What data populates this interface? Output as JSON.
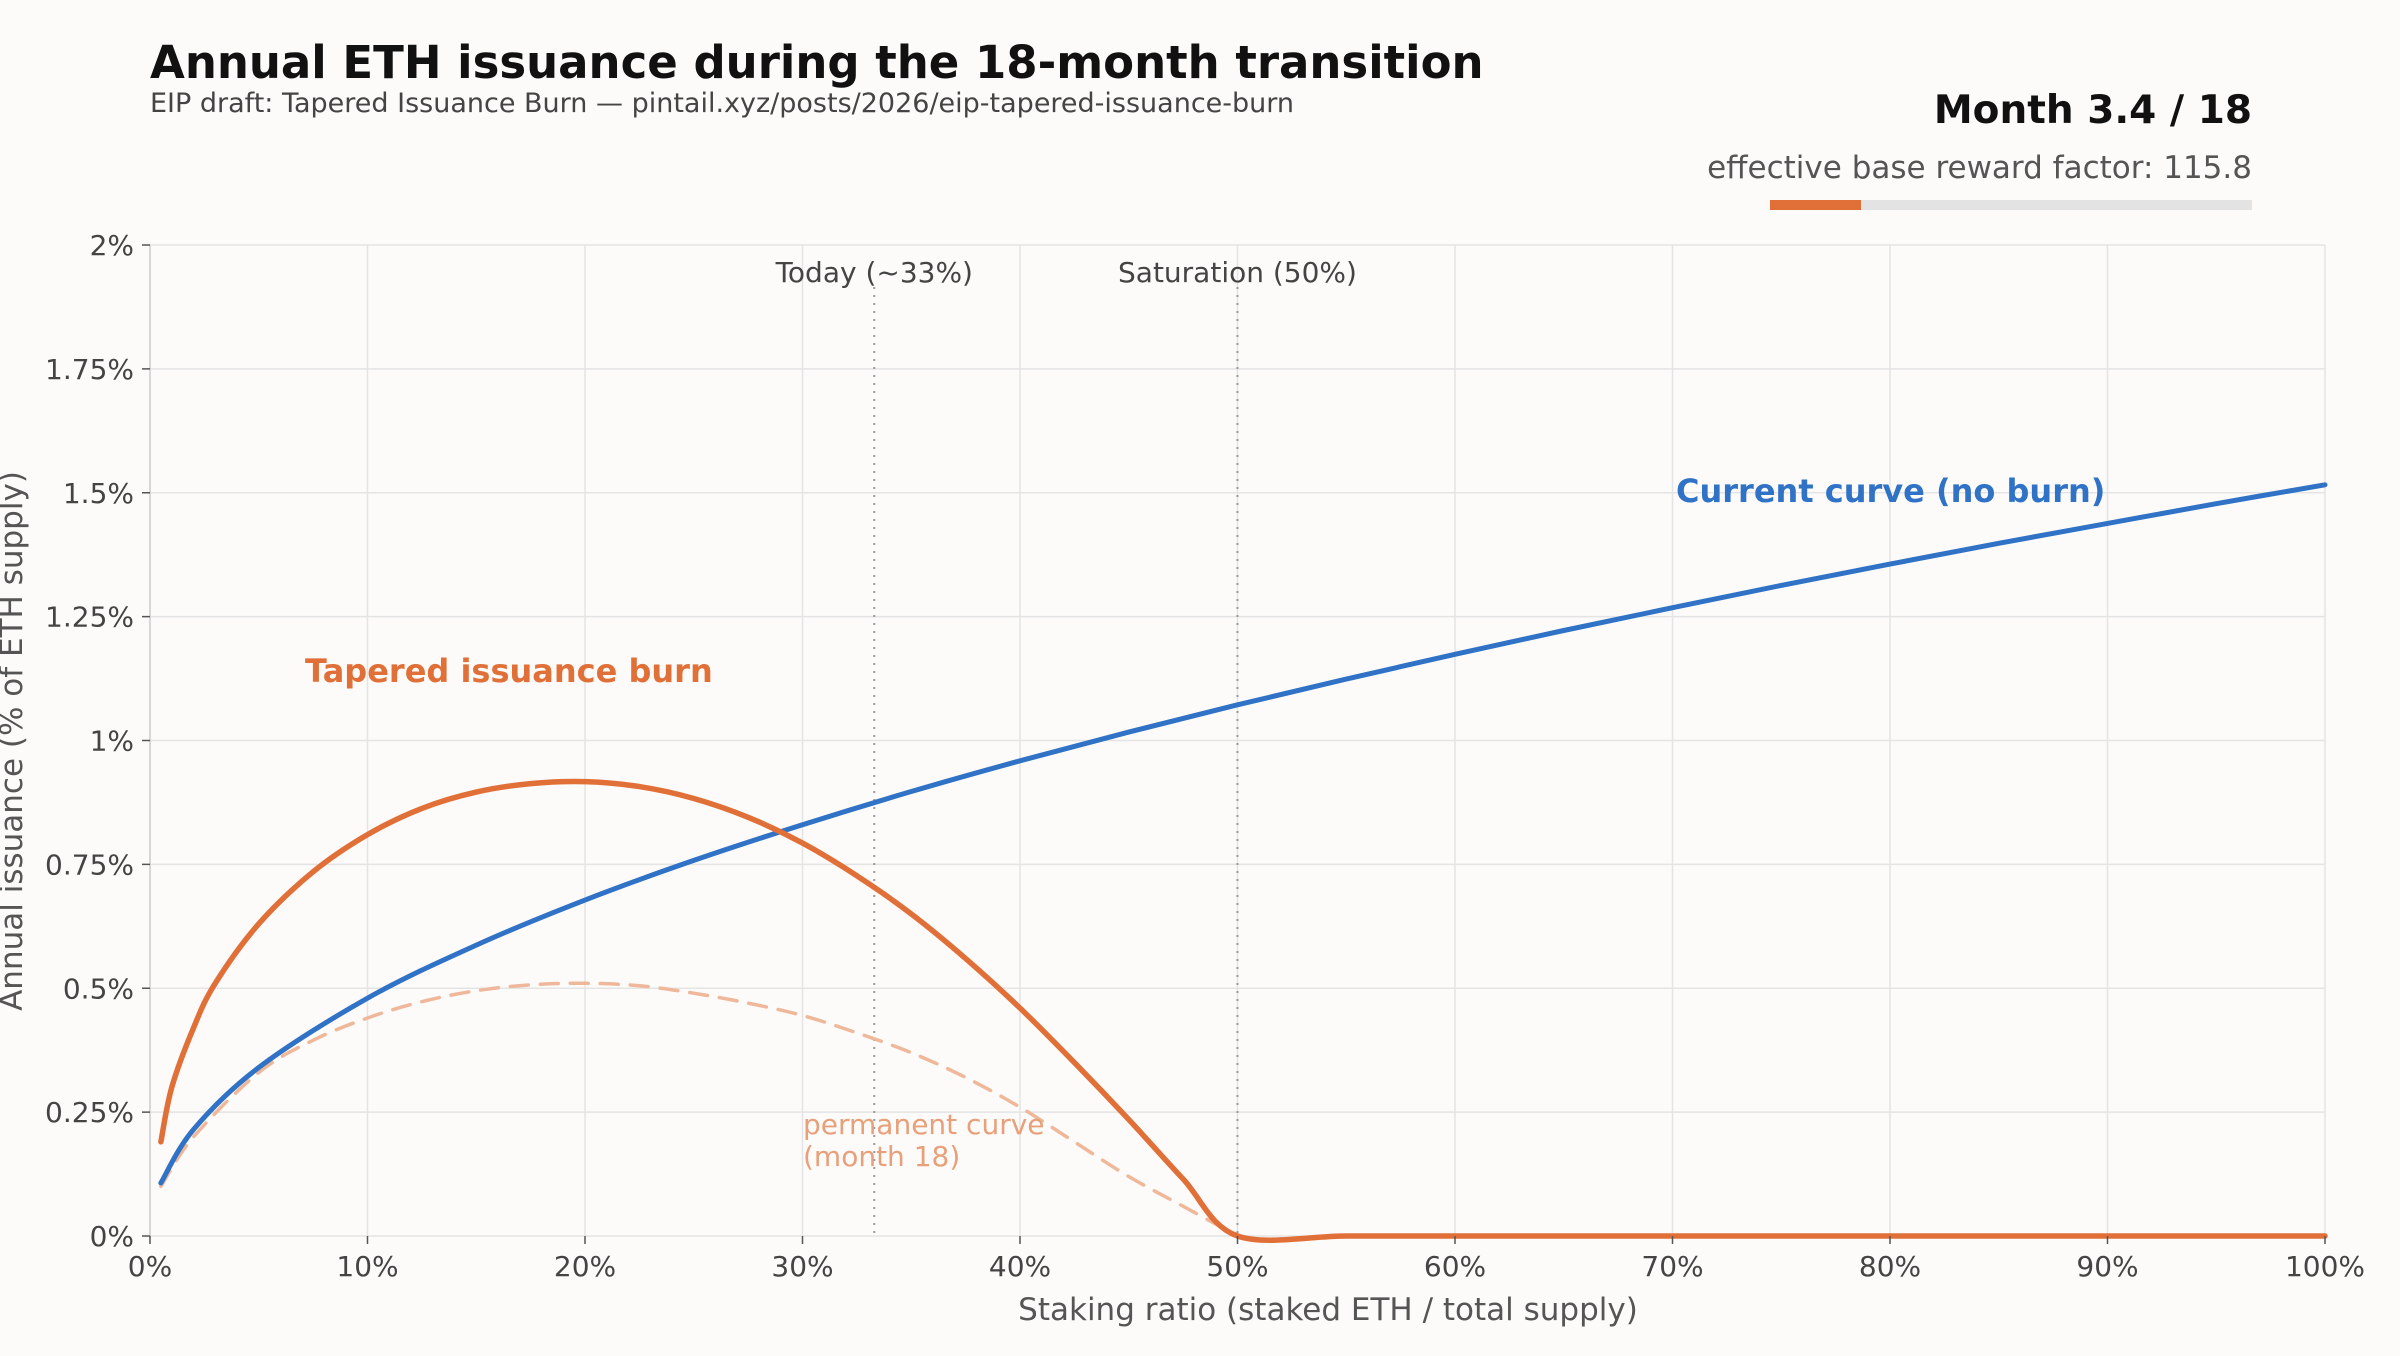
{
  "header": {
    "title": "Annual ETH issuance during the 18-month transition",
    "subtitle": "EIP draft: Tapered Issuance Burn — pintail.xyz/posts/2026/eip-tapered-issuance-burn",
    "month_label": "Month 3.4 / 18",
    "factor_label": "effective base reward factor: 115.8",
    "month_current": 3.4,
    "month_total": 18
  },
  "colors": {
    "current": "#2f72c6",
    "tapered": "#e07038",
    "permanent": "#efb89a",
    "grid": "#e4e4e4",
    "vline": "#999999",
    "progress_fill": "#e07038",
    "progress_track": "#e3e3e3"
  },
  "chart_data": {
    "type": "line",
    "title": "Annual ETH issuance during the 18-month transition",
    "subtitle": "EIP draft: Tapered Issuance Burn — pintail.xyz/posts/2026/eip-tapered-issuance-burn",
    "xlabel": "Staking ratio (staked ETH / total supply)",
    "ylabel": "Annual issuance (% of ETH supply)",
    "xlim": [
      0,
      100
    ],
    "ylim": [
      0,
      2
    ],
    "grid": true,
    "x_ticks": [
      0,
      10,
      20,
      30,
      40,
      50,
      60,
      70,
      80,
      90,
      100
    ],
    "x_tick_labels": [
      "0%",
      "10%",
      "20%",
      "30%",
      "40%",
      "50%",
      "60%",
      "70%",
      "80%",
      "90%",
      "100%"
    ],
    "y_ticks": [
      0,
      0.25,
      0.5,
      0.75,
      1,
      1.25,
      1.5,
      1.75,
      2
    ],
    "y_tick_labels": [
      "0%",
      "0.25%",
      "0.5%",
      "0.75%",
      "1%",
      "1.25%",
      "1.5%",
      "1.75%",
      "2%"
    ],
    "vlines": [
      {
        "x": 33.3,
        "label": "Today (~33%)"
      },
      {
        "x": 50,
        "label": "Saturation (50%)"
      }
    ],
    "series": [
      {
        "name": "Current curve (no burn)",
        "style": "solid",
        "x": [
          0.5,
          2,
          5,
          10,
          15,
          20,
          25,
          30,
          35,
          40,
          45,
          50,
          55,
          60,
          65,
          70,
          75,
          80,
          85,
          90,
          95,
          100
        ],
        "y": [
          0.107,
          0.215,
          0.34,
          0.48,
          0.587,
          0.678,
          0.758,
          0.83,
          0.897,
          0.959,
          1.017,
          1.072,
          1.124,
          1.174,
          1.222,
          1.268,
          1.313,
          1.356,
          1.398,
          1.438,
          1.478,
          1.516
        ]
      },
      {
        "name": "Tapered issuance burn",
        "style": "solid",
        "x": [
          0.5,
          1,
          2,
          3,
          5,
          7.5,
          10,
          12.5,
          15,
          17.5,
          20,
          22.5,
          25,
          27.5,
          30,
          32.5,
          35,
          37.5,
          40,
          42.5,
          45,
          47.5,
          50,
          55,
          60,
          65,
          70,
          75,
          80,
          85,
          90,
          95,
          100
        ],
        "y": [
          0.19,
          0.3,
          0.42,
          0.51,
          0.63,
          0.735,
          0.81,
          0.863,
          0.896,
          0.913,
          0.917,
          0.907,
          0.883,
          0.845,
          0.793,
          0.727,
          0.65,
          0.56,
          0.46,
          0.35,
          0.235,
          0.115,
          0,
          0,
          0,
          0,
          0,
          0,
          0,
          0,
          0,
          0,
          0
        ]
      },
      {
        "name": "permanent curve (month 18)",
        "style": "dashed",
        "x": [
          0.5,
          2,
          5,
          7.5,
          10,
          12.5,
          15,
          17.5,
          20,
          22.5,
          25,
          27.5,
          30,
          32.5,
          35,
          37.5,
          40,
          42.5,
          45,
          47.5,
          50
        ],
        "y": [
          0.1,
          0.2,
          0.33,
          0.395,
          0.44,
          0.473,
          0.495,
          0.507,
          0.51,
          0.505,
          0.49,
          0.47,
          0.445,
          0.41,
          0.37,
          0.32,
          0.26,
          0.19,
          0.12,
          0.06,
          0
        ]
      }
    ],
    "annotations": [
      {
        "text": "Current curve (no burn)",
        "series": 0
      },
      {
        "text": "Tapered issuance burn",
        "series": 1
      },
      {
        "text": "permanent curve",
        "series": 2
      },
      {
        "text": "(month 18)",
        "series": 2
      }
    ]
  }
}
